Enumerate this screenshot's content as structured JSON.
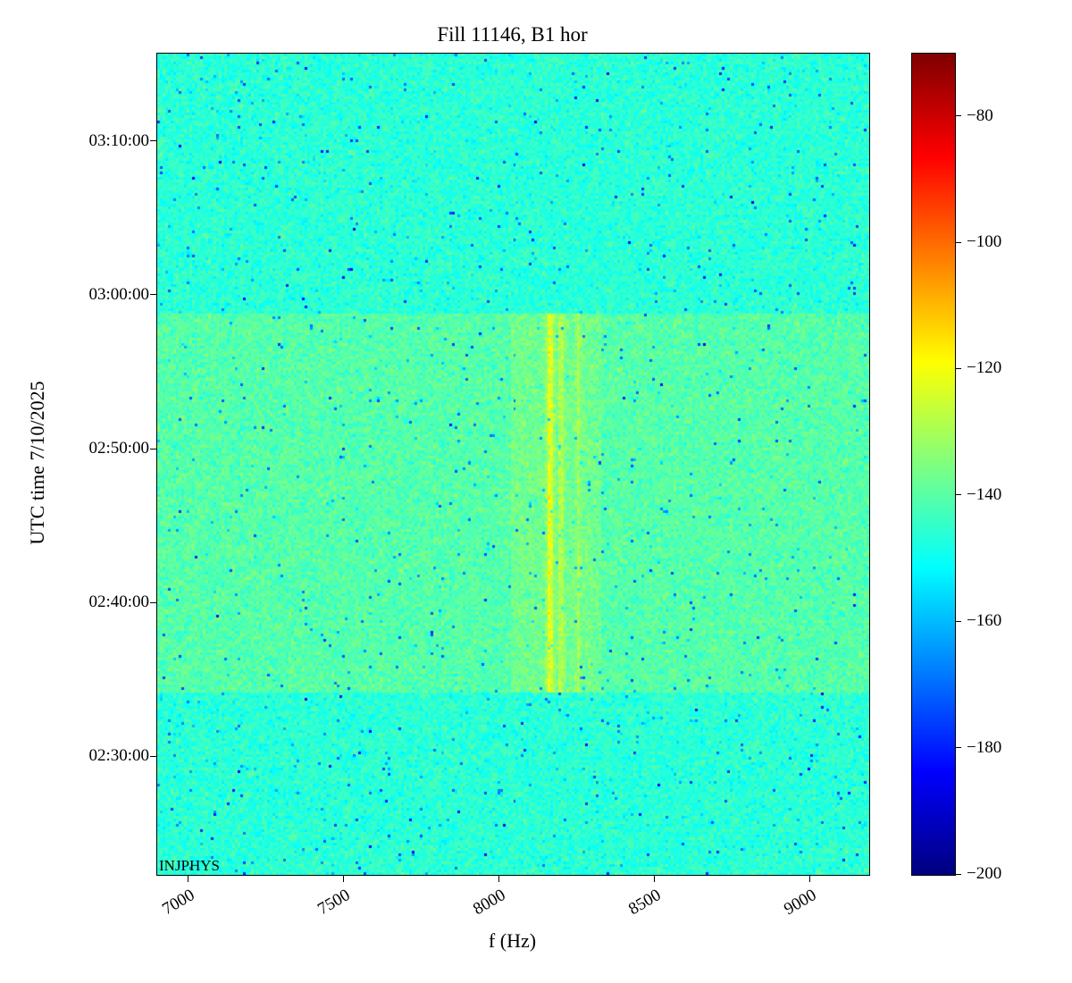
{
  "title": "Fill 11146, B1 hor",
  "annotation": "INJPHYS",
  "chart_data": {
    "type": "heatmap",
    "title": "Fill 11146, B1 hor",
    "xlabel": "f (Hz)",
    "ylabel": "UTC time 7/10/2025",
    "x_range_hz": [
      6900,
      9190
    ],
    "x_ticks": [
      7000,
      7500,
      8000,
      8500,
      9000
    ],
    "y_time_start": "02:22:20",
    "y_time_end": "03:15:45",
    "y_ticks": [
      "03:10:00",
      "03:00:00",
      "02:50:00",
      "02:40:00",
      "02:30:00"
    ],
    "colormap": "jet",
    "colorbar": {
      "vmin": -200,
      "vmax": -70,
      "ticks": [
        -80,
        -100,
        -120,
        -140,
        -160,
        -180,
        -200
      ]
    },
    "background_level_db": -146,
    "noise_sigma_db": 3.2,
    "speck_probability": 0.012,
    "speck_depth_db": 18,
    "band": {
      "time_start": "02:34:10",
      "time_end": "02:58:45",
      "level_db": -140.5,
      "hot_region": {
        "f_start": 8040,
        "f_end": 8330,
        "boost_db": 3.5
      },
      "lines": [
        {
          "f": 8165,
          "width_hz": 11,
          "boost_db": 16
        },
        {
          "f": 8200,
          "width_hz": 9,
          "boost_db": 10
        },
        {
          "f": 8255,
          "width_hz": 8,
          "boost_db": 6
        }
      ]
    },
    "legend": "none",
    "grid": false
  }
}
